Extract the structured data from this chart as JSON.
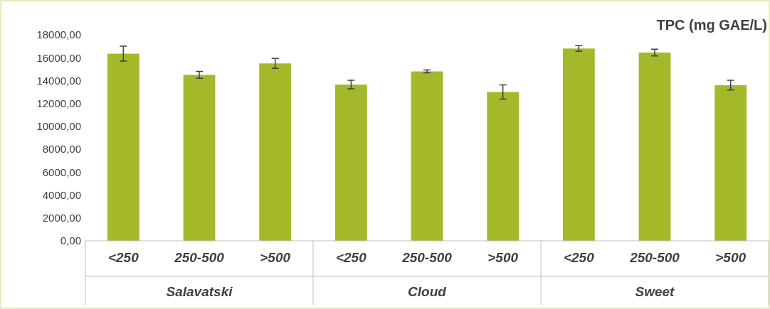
{
  "chart_data": {
    "type": "bar",
    "title": "TPC (mg GAE/L)",
    "categories": [
      "<250",
      "250-500",
      ">500",
      "<250",
      "250-500",
      ">500",
      "<250",
      "250-500",
      ">500"
    ],
    "values": [
      16350,
      14500,
      15500,
      13650,
      14800,
      13000,
      16800,
      16450,
      13600
    ],
    "errors": [
      650,
      300,
      430,
      370,
      120,
      620,
      250,
      300,
      430
    ],
    "color": "#a5b829",
    "ylim": [
      0,
      18000
    ],
    "yticks": [
      {
        "value": 0,
        "label": "0,00"
      },
      {
        "value": 2000,
        "label": "2000,00"
      },
      {
        "value": 4000,
        "label": "4000,00"
      },
      {
        "value": 6000,
        "label": "6000,00"
      },
      {
        "value": 8000,
        "label": "8000,00"
      },
      {
        "value": 10000,
        "label": "10000,00"
      },
      {
        "value": 12000,
        "label": "12000,00"
      },
      {
        "value": 14000,
        "label": "14000,00"
      },
      {
        "value": 16000,
        "label": "16000,00"
      },
      {
        "value": 18000,
        "label": "18000,00"
      }
    ],
    "annotations": [
      "Salavatski",
      "Cloud",
      "Sweet"
    ]
  }
}
